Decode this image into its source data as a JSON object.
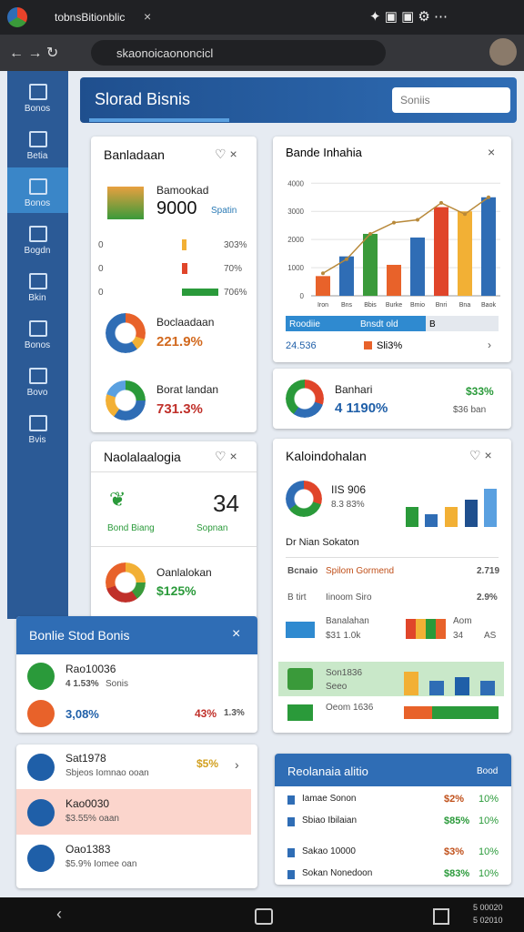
{
  "browser": {
    "tab_title": "tobnsBitionblic",
    "url": "skaonoicaononcicl"
  },
  "sidebar": [
    "Bonos",
    "Betia",
    "Bonos",
    "Bogdn",
    "Bkin",
    "Bonos",
    "Bovo",
    "Bvis"
  ],
  "header": {
    "title": "Slorad Bisnis",
    "search": "Soniis"
  },
  "card1": {
    "title": "Banladaan",
    "name": "Bamookad",
    "value": "9000",
    "tag": "Spatin",
    "rows": [
      [
        "0",
        "303%"
      ],
      [
        "0",
        "70%"
      ],
      [
        "0",
        "706%"
      ]
    ],
    "items": [
      [
        "Boclaadaan",
        "221.9%"
      ],
      [
        "Borat landan",
        "731.3%"
      ]
    ]
  },
  "card2": {
    "title": "Bande Inhahia",
    "legend": [
      "Roodiie",
      "Bnsdt old",
      "B"
    ],
    "footer": [
      "24.536",
      "Sli3%"
    ],
    "chart": {
      "type": "bar",
      "categories": [
        "Iron",
        "Bns",
        "Bbis",
        "Burke",
        "Bmio",
        "Bnri",
        "Bna",
        "Baok"
      ],
      "values": [
        700,
        1400,
        2200,
        1100,
        2070,
        3150,
        3000,
        3500
      ],
      "colors": [
        "#e8622a",
        "#2f6db5",
        "#3a9a3a",
        "#e8622a",
        "#2f6db5",
        "#e0452a",
        "#f2b035",
        "#2f6db5"
      ],
      "line": {
        "color": "#b8893a",
        "values": [
          800,
          1300,
          2200,
          2600,
          2700,
          3300,
          2900,
          3500
        ]
      },
      "ylim": [
        0,
        4300
      ],
      "yticks": [
        0,
        1000,
        2000,
        3000,
        4000
      ],
      "grid": true
    }
  },
  "card3": {
    "label": "Banhari",
    "value": "4 1190%",
    "change": "$33%",
    "note": "$36 ban"
  },
  "card4": {
    "title": "Naolalaalogia",
    "value": "34",
    "label": "Bond Biang",
    "status": "Sopnan",
    "item": "Oanlalokan",
    "item_value": "$125%"
  },
  "card5": {
    "title": "Kaloindohalan",
    "value": "IIS 906",
    "change": "8.3 83%",
    "subtitle": "Dr Nian Sokaton",
    "rows": [
      [
        "Bcnaio",
        "Spilom Gormend",
        "2.719"
      ],
      [
        "B tirt",
        "Iinoom Siro",
        "2.9%"
      ],
      [
        "Banalahan",
        "$31 1.0k",
        "Aom",
        "34",
        "AS"
      ],
      [
        "Son1836",
        "Seeo"
      ],
      [
        "Oeom 1636"
      ]
    ]
  },
  "popup": {
    "title": "Bonlie Stod Bonis",
    "rows": [
      [
        "Rao10036",
        "4 1.53%",
        "Sonis"
      ],
      [
        "3,08%",
        "43%",
        "1.3%"
      ]
    ]
  },
  "list": [
    [
      "Sat1978",
      "Sbjeos Iomnao ooan",
      "$5%"
    ],
    [
      "Kao0030",
      "$3.55% oaan",
      ""
    ],
    [
      "Oao1383",
      "$5.9% Iomee oan",
      ""
    ]
  ],
  "card8": {
    "title": "Reolanaia alitio",
    "action": "Bood",
    "rows": [
      [
        "Iamae Sonon",
        "$2%",
        "10%"
      ],
      [
        "Sbiao Ibilaian",
        "$85%",
        "10%"
      ],
      [
        "Sakao 10000",
        "$3%",
        "10%"
      ],
      [
        "Sokan Nonedoon",
        "$83%",
        "10%"
      ]
    ]
  },
  "system": {
    "time": "5 00020",
    "date": "5 02010"
  }
}
